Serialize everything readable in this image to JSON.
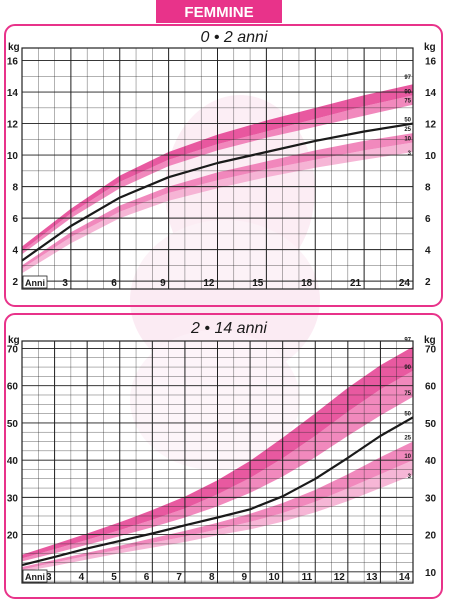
{
  "header": {
    "label": "FEMMINE"
  },
  "colors": {
    "accent": "#e8338a",
    "band_outer": "#f5a9cf",
    "band_mid": "#ee74b2",
    "band_inner": "#e43c8f",
    "median": "#1a1a1a",
    "grid": "#222222",
    "ghost": "#f7cfe3"
  },
  "chart_data": [
    {
      "type": "area",
      "title": "0 • 2 anni",
      "ylabel": "kg",
      "xlabel": "Anni",
      "x_ticks": [
        3,
        6,
        9,
        12,
        15,
        18,
        21,
        24
      ],
      "y_ticks": [
        2,
        4,
        6,
        8,
        10,
        12,
        14,
        16
      ],
      "y_ticks_right": [
        2,
        4,
        6,
        8,
        10,
        12,
        14,
        16
      ],
      "xlim": [
        0,
        24
      ],
      "ylim": [
        1.5,
        16.8
      ],
      "percentiles": [
        "97",
        "90",
        "75",
        "50",
        "25",
        "10",
        "3"
      ],
      "x": [
        0,
        3,
        6,
        9,
        12,
        15,
        18,
        21,
        24
      ],
      "bands": [
        {
          "lower_pct": "3",
          "upper_pct": "10",
          "fill": "band_outer",
          "lower": [
            2.5,
            4.4,
            6.0,
            7.1,
            7.9,
            8.6,
            9.2,
            9.7,
            10.2
          ],
          "upper": [
            2.8,
            4.8,
            6.4,
            7.6,
            8.4,
            9.1,
            9.7,
            10.3,
            10.8
          ]
        },
        {
          "lower_pct": "10",
          "upper_pct": "25",
          "fill": "band_mid",
          "lower": [
            2.8,
            4.8,
            6.4,
            7.6,
            8.4,
            9.1,
            9.7,
            10.3,
            10.8
          ],
          "upper": [
            3.0,
            5.1,
            6.8,
            8.0,
            8.9,
            9.6,
            10.3,
            10.9,
            11.4
          ]
        },
        {
          "lower_pct": "75",
          "upper_pct": "90",
          "fill": "band_mid",
          "lower": [
            3.7,
            6.0,
            7.9,
            9.3,
            10.3,
            11.1,
            11.8,
            12.5,
            13.2
          ],
          "upper": [
            3.9,
            6.3,
            8.3,
            9.7,
            10.7,
            11.5,
            12.3,
            13.1,
            13.8
          ]
        },
        {
          "lower_pct": "90",
          "upper_pct": "97",
          "fill": "band_inner",
          "lower": [
            3.9,
            6.3,
            8.3,
            9.7,
            10.7,
            11.5,
            12.3,
            13.1,
            13.8
          ],
          "upper": [
            4.2,
            6.6,
            8.7,
            10.2,
            11.3,
            12.2,
            13.0,
            13.8,
            14.5
          ]
        }
      ],
      "median": [
        3.3,
        5.5,
        7.3,
        8.6,
        9.5,
        10.2,
        10.9,
        11.5,
        12.0
      ]
    },
    {
      "type": "area",
      "title": "2 • 14 anni",
      "ylabel": "kg",
      "xlabel": "Anni",
      "x_ticks": [
        3,
        4,
        5,
        6,
        7,
        8,
        9,
        10,
        11,
        12,
        13,
        14
      ],
      "y_ticks": [
        20,
        30,
        40,
        50,
        60,
        70
      ],
      "y_ticks_right": [
        10,
        20,
        30,
        40,
        50,
        60,
        70
      ],
      "xlim": [
        2,
        14
      ],
      "ylim": [
        7,
        72
      ],
      "percentiles": [
        "97",
        "90",
        "75",
        "50",
        "25",
        "10",
        "3"
      ],
      "x": [
        2,
        3,
        4,
        5,
        6,
        7,
        8,
        9,
        10,
        11,
        12,
        13,
        14
      ],
      "bands": [
        {
          "lower_pct": "3",
          "upper_pct": "10",
          "fill": "band_outer",
          "lower": [
            10.0,
            11.6,
            13.3,
            15.0,
            16.5,
            18.0,
            19.8,
            21.4,
            23.5,
            26.0,
            29.0,
            32.5,
            36.0
          ],
          "upper": [
            10.6,
            12.5,
            14.3,
            16.0,
            17.8,
            19.5,
            21.4,
            23.4,
            25.8,
            28.8,
            32.4,
            36.2,
            40.0
          ]
        },
        {
          "lower_pct": "10",
          "upper_pct": "25",
          "fill": "band_mid",
          "lower": [
            10.6,
            12.5,
            14.3,
            16.0,
            17.8,
            19.5,
            21.4,
            23.4,
            25.8,
            28.8,
            32.4,
            36.2,
            40.0
          ],
          "upper": [
            11.3,
            13.2,
            15.1,
            17.0,
            19.0,
            21.0,
            23.2,
            25.6,
            28.5,
            32.0,
            36.2,
            40.8,
            45.0
          ]
        },
        {
          "lower_pct": "75",
          "upper_pct": "90",
          "fill": "band_mid",
          "lower": [
            12.8,
            15.0,
            17.3,
            19.6,
            22.0,
            24.6,
            27.6,
            31.2,
            35.6,
            40.8,
            46.5,
            52.0,
            57.0
          ],
          "upper": [
            13.6,
            16.1,
            18.6,
            21.2,
            24.0,
            27.0,
            30.8,
            35.2,
            40.5,
            46.5,
            53.0,
            59.0,
            64.0
          ]
        },
        {
          "lower_pct": "90",
          "upper_pct": "97",
          "fill": "band_inner",
          "lower": [
            13.6,
            16.1,
            18.6,
            21.2,
            24.0,
            27.0,
            30.8,
            35.2,
            40.5,
            46.5,
            53.0,
            59.0,
            64.0
          ],
          "upper": [
            14.6,
            17.4,
            20.3,
            23.3,
            26.6,
            30.2,
            34.6,
            39.8,
            46.0,
            52.6,
            59.4,
            65.5,
            70.5
          ]
        }
      ],
      "median": [
        11.8,
        14.0,
        16.3,
        18.3,
        20.3,
        22.5,
        24.6,
        26.8,
        30.3,
        35.0,
        40.6,
        46.5,
        51.5
      ]
    }
  ]
}
